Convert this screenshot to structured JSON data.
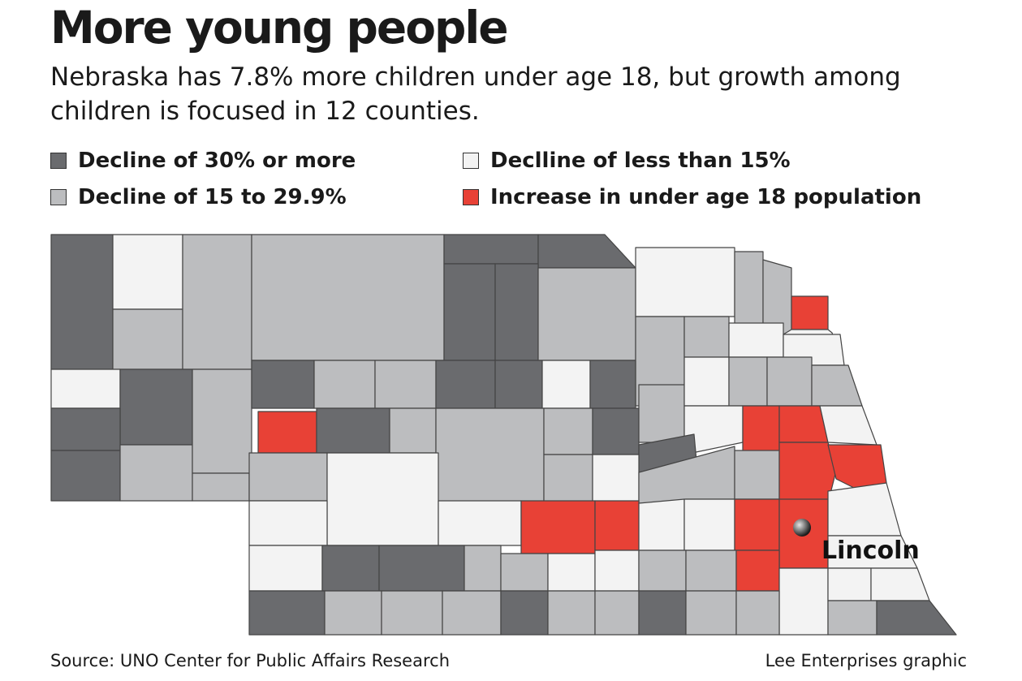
{
  "title": "More young people",
  "subtitle": "Nebraska has 7.8% more children under age 18, but growth among children is focused in 12 counties.",
  "legend": [
    {
      "label": "Decline of 30% or more",
      "color": "#6a6b6e"
    },
    {
      "label": "Declline of less than 15%",
      "color": "#f3f3f3"
    },
    {
      "label": "Decline of 15 to 29.9%",
      "color": "#bcbdbf"
    },
    {
      "label": "Increase in under age 18 population",
      "color": "#e84136"
    }
  ],
  "city": {
    "name": "Lincoln"
  },
  "source": "Source: UNO Center for Public Affairs Research",
  "credit": "Lee Enterprises graphic",
  "colors": {
    "dark": "#6a6b6e",
    "medium": "#bcbdbf",
    "light": "#f3f3f3",
    "red": "#e84136",
    "border": "#444444"
  }
}
